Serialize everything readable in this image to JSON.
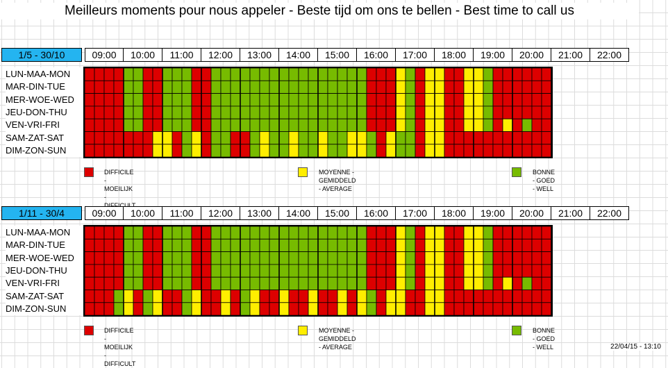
{
  "title": "Meilleurs moments pour nous appeler - Beste tijd om ons te bellen - Best time to call us",
  "hours": [
    "09:00",
    "10:00",
    "11:00",
    "12:00",
    "13:00",
    "14:00",
    "15:00",
    "16:00",
    "17:00",
    "18:00",
    "19:00",
    "20:00",
    "21:00",
    "22:00"
  ],
  "days": [
    "LUN-MAA-MON",
    "MAR-DIN-TUE",
    "MER-WOE-WED",
    "JEU-DON-THU",
    "VEN-VRI-FRI",
    "SAM-ZAT-SAT",
    "DIM-ZON-SUN"
  ],
  "colors": {
    "difficult": "#dd0000",
    "average": "#ffee00",
    "good": "#77bb00",
    "period_bg": "#24b4f0"
  },
  "legend": {
    "difficult": "DIFFICILE - MOEILIJK - DIFFICULT",
    "average": "MOYENNE - GEMIDDELD - AVERAGE",
    "good": "BONNE - GOED - WELL"
  },
  "sections": [
    {
      "period": "1/5 - 30/10",
      "schedule": [
        "RRRRGGRRGGGRRGGGGGGGGGGGGGGGGRRRYGRYYRRYYGRRRRRR",
        "RRRRGGRRGGGRRGGGGGGGGGGGGGGGGRRRYGRYYRRYYGRRRRRR",
        "RRRRGGRRGGGRRGGGGGGGGGGGGGGGGRRRYGRYYRRYYGRRRRRR",
        "RRRRGGRRGGGRRGGGGGGGGGGGGGGGGRRRYGRYYRRYYGRRRRRR",
        "RRRRGGRRGGGRRGGGGGGGGGGGGGGGGRRRYGRYYRRYYGRYRGRR",
        "RRRRRRRYYRGYRGGRRGYGGYGGYGGYYGRYGGRYYRRRRRRRRRRR",
        "RRRRRRRYYRGYRGGRRGYGGYGGYGGYYGRYGGRYYRRRRRRRRRRR"
      ]
    },
    {
      "period": "1/11 - 30/4",
      "schedule": [
        "RRRRGGRRGGGRRGGGGGGGGGGGGGGGGRRRYGRYYRRYYGRRRRRR",
        "RRRRGGRRGGGRRGGGGGGGGGGGGGGGGRRRYGRYYRRYYGRRRRRR",
        "RRRRGGRRGGGRRGGGGGGGGGGGGGGGGRRRYGRYYRRYYGRRRRRR",
        "RRRRGGRRGGGRRGGGGGGGGGGGGGGGGRRRYGRYYRRYYGRRRRRR",
        "RRRRGGRRGGGRRGGGGGGGGGGGGGGGGRRRYGRYYRRYYGRYRGRR",
        "RRRGYRGYRRGYRRYRGYRRYRRYRRYRYGRYYRRYYRRRRRRRRRRR",
        "RRRGYRGYRRGYRRYRGYRRYRRYRRYRYGRYYRRYYRRRRRRRRRRR"
      ]
    }
  ],
  "timestamp": "22/04/15 - 13:10"
}
